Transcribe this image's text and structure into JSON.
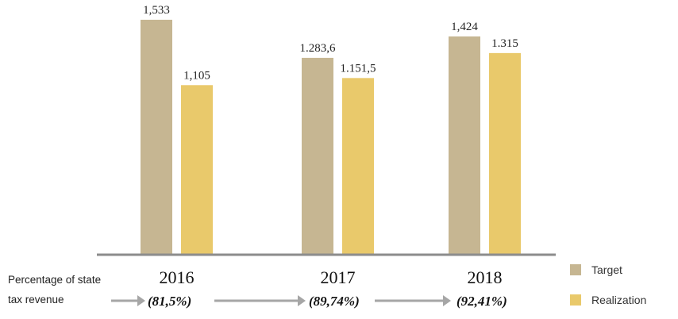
{
  "chart_data": {
    "type": "bar",
    "categories": [
      "2016",
      "2017",
      "2018"
    ],
    "series": [
      {
        "name": "Target",
        "values": [
          1533,
          1283.6,
          1424
        ],
        "labels": [
          "1,533",
          "1.283,6",
          "1,424"
        ],
        "color": "#c6b692"
      },
      {
        "name": "Realization",
        "values": [
          1105,
          1151.5,
          1315
        ],
        "labels": [
          "1,105",
          "1.151,5",
          "1.315"
        ],
        "color": "#e9c96b"
      }
    ],
    "ylim": [
      0,
      1600
    ],
    "legend": "right",
    "grid": false
  },
  "percentage_row": {
    "label_line1": "Percentage of state",
    "label_line2": "tax revenue",
    "values": [
      "(81,5%)",
      "(89,74%)",
      "(92,41%)"
    ]
  },
  "colors": {
    "arrow": "#a6a6a6",
    "baseline": "#8c8c8c"
  }
}
